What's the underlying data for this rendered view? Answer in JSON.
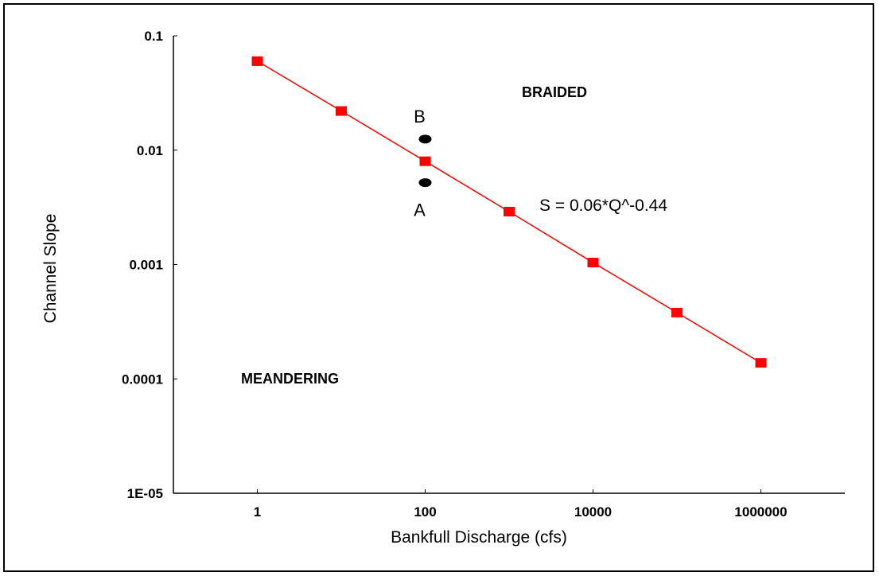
{
  "chart_data": {
    "type": "scatter",
    "xlabel": "Bankfull Discharge (cfs)",
    "ylabel": "Channel Slope",
    "x_scale": "log",
    "y_scale": "log",
    "xlim": [
      0.1,
      10000000
    ],
    "ylim": [
      1e-05,
      0.1
    ],
    "x_ticks": [
      1,
      100,
      10000,
      1000000
    ],
    "x_tick_labels": [
      "1",
      "100",
      "10000",
      "1000000"
    ],
    "y_ticks": [
      1e-05,
      0.0001,
      0.001,
      0.01,
      0.1
    ],
    "y_tick_labels": [
      "1E-05",
      "0.0001",
      "0.001",
      "0.01",
      "0.1"
    ],
    "grid": false,
    "series": [
      {
        "color": "#ff0000",
        "marker": "square",
        "line": true,
        "x": [
          1,
          10,
          100,
          1000,
          10000,
          100000,
          1000000
        ],
        "y": [
          0.06,
          0.022,
          0.008,
          0.0029,
          0.00104,
          0.00038,
          0.000138
        ]
      }
    ],
    "points": [
      {
        "label": "A",
        "x": 100,
        "y": 0.0052,
        "color": "#000000"
      },
      {
        "label": "B",
        "x": 100,
        "y": 0.0125,
        "color": "#000000"
      }
    ],
    "annotations": {
      "braided": "BRAIDED",
      "meandering": "MEANDERING",
      "equation": "S = 0.06*Q^-0.44"
    }
  }
}
